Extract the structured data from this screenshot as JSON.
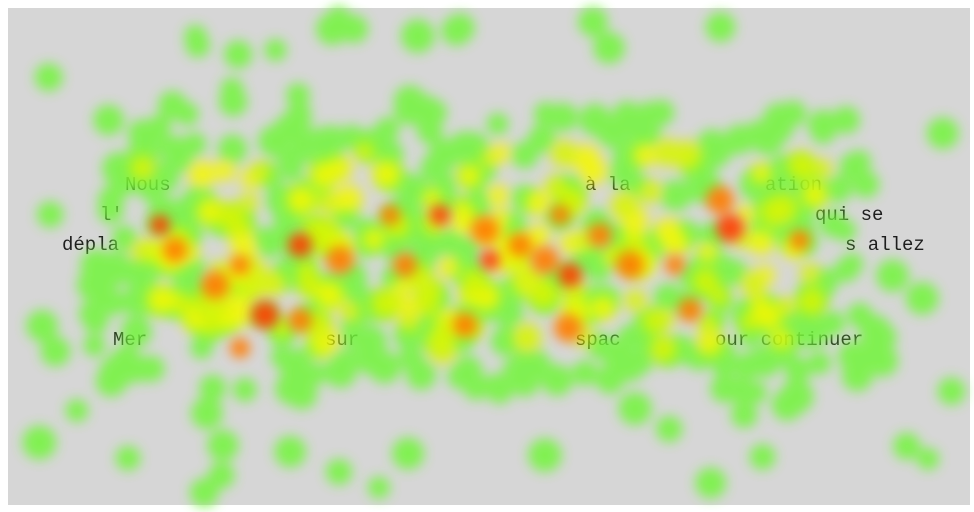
{
  "screen": {
    "lines": [
      [
        "Nous",
        "à la",
        "ation"
      ],
      [
        "l'",
        "qui se"
      ],
      [
        "dépla",
        "s allez"
      ],
      [
        "Mer",
        "sur",
        "spac",
        "our continuer"
      ]
    ]
  }
}
